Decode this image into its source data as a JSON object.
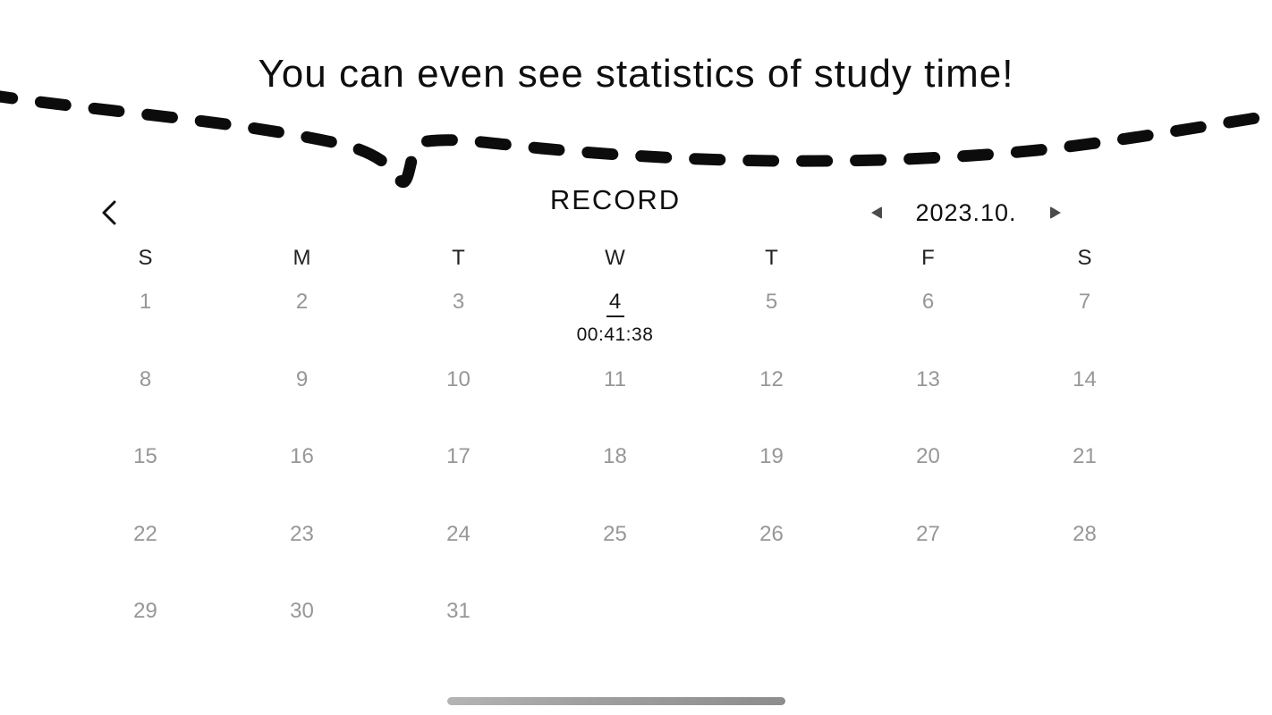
{
  "page": {
    "title": "You can even see statistics of study time!"
  },
  "header": {
    "screen_title": "RECORD",
    "month_label": "2023.10."
  },
  "calendar": {
    "weekdays": [
      "S",
      "M",
      "T",
      "W",
      "T",
      "F",
      "S"
    ],
    "weeks": [
      [
        "1",
        "2",
        "3",
        "4",
        "5",
        "6",
        "7"
      ],
      [
        "8",
        "9",
        "10",
        "11",
        "12",
        "13",
        "14"
      ],
      [
        "15",
        "16",
        "17",
        "18",
        "19",
        "20",
        "21"
      ],
      [
        "22",
        "23",
        "24",
        "25",
        "26",
        "27",
        "28"
      ],
      [
        "29",
        "30",
        "31",
        "",
        "",
        "",
        ""
      ]
    ],
    "active_day": "4",
    "study_time": "00:41:38"
  },
  "colors": {
    "text_primary": "#0e0e0e",
    "date_muted": "#979797",
    "squiggle_line": "#0c0c0c",
    "nav_triangle": "#4b4b4b",
    "home_indicator": "#9a9a9a"
  }
}
